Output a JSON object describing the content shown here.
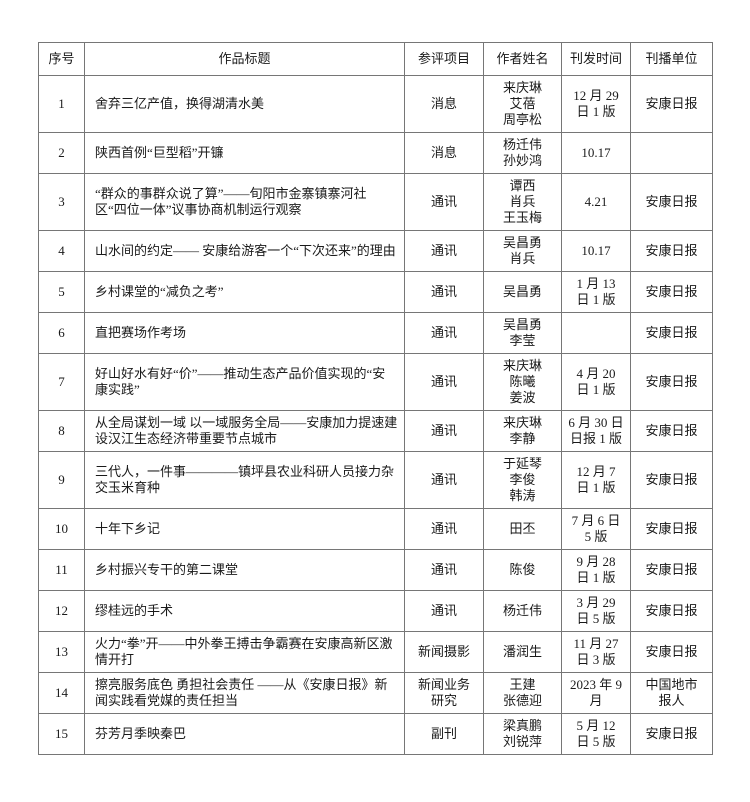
{
  "colors": {
    "background": "#ffffff",
    "border": "#767676",
    "text": "#1a1a1a"
  },
  "table": {
    "headers": [
      {
        "key": "no",
        "label": "序号"
      },
      {
        "key": "title",
        "label": "作品标题"
      },
      {
        "key": "category",
        "label": "参评项目"
      },
      {
        "key": "authors",
        "label": "作者姓名"
      },
      {
        "key": "time",
        "label": "刊发时间"
      },
      {
        "key": "unit",
        "label": "刊播单位"
      }
    ],
    "rows": [
      {
        "no": "1",
        "title": "舍弃三亿产值，换得湖清水美",
        "category": "消息",
        "authors": "来庆琳\n艾蓓\n周亭松",
        "time": "12 月 29\n日 1 版",
        "unit": "安康日报"
      },
      {
        "no": "2",
        "title": "陕西首例“巨型稻”开镰",
        "category": "消息",
        "authors": "杨迁伟\n孙妙鸿",
        "time": "10.17",
        "unit": ""
      },
      {
        "no": "3",
        "title": "“群众的事群众说了算”——旬阳市金寨镇寨河社区“四位一体”议事协商机制运行观察",
        "category": "通讯",
        "authors": "谭西\n肖兵\n王玉梅",
        "time": "4.21",
        "unit": "安康日报"
      },
      {
        "no": "4",
        "title": "山水间的约定—— 安康给游客一个“下次还来”的理由",
        "category": "通讯",
        "authors": "吴昌勇\n肖兵",
        "time": "10.17",
        "unit": "安康日报"
      },
      {
        "no": "5",
        "title": "乡村课堂的“减负之考”",
        "category": "通讯",
        "authors": "吴昌勇",
        "time": "1 月 13\n日 1 版",
        "unit": "安康日报"
      },
      {
        "no": "6",
        "title": "直把赛场作考场",
        "category": "通讯",
        "authors": "吴昌勇\n李莹",
        "time": "",
        "unit": "安康日报"
      },
      {
        "no": "7",
        "title": "好山好水有好“价”——推动生态产品价值实现的“安康实践”",
        "category": "通讯",
        "authors": "来庆琳\n陈曦\n姜波",
        "time": "4 月 20\n日 1 版",
        "unit": "安康日报"
      },
      {
        "no": "8",
        "title": "从全局谋划一域 以一域服务全局——安康加力提速建设汉江生态经济带重要节点城市",
        "category": "通讯",
        "authors": "来庆琳\n李静",
        "time": "6 月 30 日\n日报 1 版",
        "unit": "安康日报"
      },
      {
        "no": "9",
        "title": "三代人，一件事————镇坪县农业科研人员接力杂交玉米育种",
        "category": "通讯",
        "authors": "于延琴\n李俊\n韩涛",
        "time": "12 月 7\n日 1 版",
        "unit": "安康日报"
      },
      {
        "no": "10",
        "title": "十年下乡记",
        "category": "通讯",
        "authors": "田丕",
        "time": "7 月 6 日\n5 版",
        "unit": "安康日报"
      },
      {
        "no": "11",
        "title": "乡村振兴专干的第二课堂",
        "category": "通讯",
        "authors": "陈俊",
        "time": "9 月 28\n日 1 版",
        "unit": "安康日报"
      },
      {
        "no": "12",
        "title": "缪桂远的手术",
        "category": "通讯",
        "authors": "杨迁伟",
        "time": "3 月 29\n日 5 版",
        "unit": "安康日报"
      },
      {
        "no": "13",
        "title": "火力“拳”开——中外拳王搏击争霸赛在安康高新区激情开打",
        "category": "新闻摄影",
        "authors": "潘润生",
        "time": "11 月 27\n日 3 版",
        "unit": "安康日报"
      },
      {
        "no": "14",
        "title": "擦亮服务底色 勇担社会责任 ——从《安康日报》新闻实践看党媒的责任担当",
        "category": "新闻业务\n研究",
        "authors": "王建\n张德迎",
        "time": "2023 年 9\n月",
        "unit": "中国地市\n报人"
      },
      {
        "no": "15",
        "title": "芬芳月季映秦巴",
        "category": "副刊",
        "authors": "梁真鹏\n刘锐萍",
        "time": "5 月 12\n日 5 版",
        "unit": "安康日报"
      }
    ]
  }
}
